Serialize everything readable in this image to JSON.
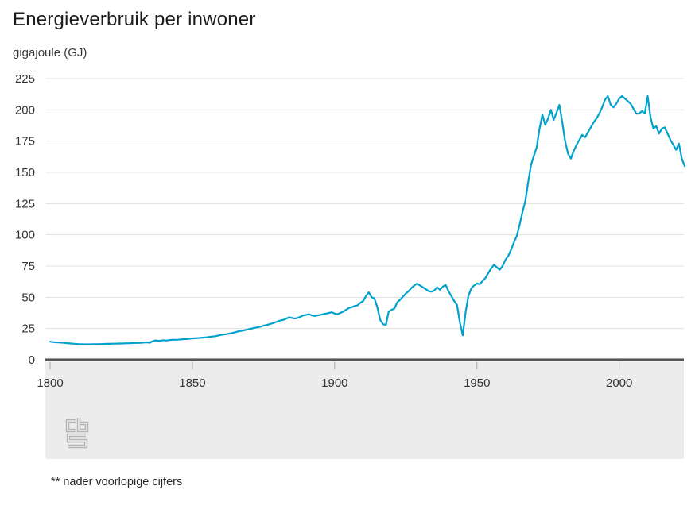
{
  "chart": {
    "title": "Energieverbruik per inwoner",
    "unit": "gigajoule (GJ)",
    "footnote": "** nader voorlopige cijfers",
    "logo": "cbs-logo",
    "colors": {
      "line": "#00a1cd",
      "grid": "#e0e0e0",
      "band": "#ececec",
      "baseline": "#56565a",
      "tick": "#a6a6a6",
      "text": "#333333",
      "logo": "#b5b5b5"
    }
  },
  "chart_data": {
    "type": "line",
    "title": "Energieverbruik per inwoner",
    "xlabel": "",
    "ylabel": "gigajoule (GJ)",
    "xlim": [
      1800,
      2023
    ],
    "ylim": [
      0,
      225
    ],
    "x_ticks": [
      1800,
      1850,
      1900,
      1950,
      2000
    ],
    "y_ticks": [
      0,
      25,
      50,
      75,
      100,
      125,
      150,
      175,
      200,
      225
    ],
    "grid": "horizontal",
    "legend_position": "none",
    "annotations": [
      "** nader voorlopige cijfers"
    ],
    "series": [
      {
        "name": "Energieverbruik per inwoner (GJ)",
        "x_start": 1800,
        "x_step": 1,
        "values": [
          14.5,
          14.2,
          14.0,
          13.9,
          13.7,
          13.5,
          13.3,
          13.1,
          12.9,
          12.7,
          12.6,
          12.5,
          12.4,
          12.4,
          12.4,
          12.5,
          12.5,
          12.6,
          12.6,
          12.7,
          12.8,
          12.8,
          12.9,
          12.9,
          13.0,
          13.0,
          13.1,
          13.2,
          13.3,
          13.4,
          13.5,
          13.5,
          13.6,
          13.8,
          14.0,
          13.6,
          14.8,
          15.5,
          15.2,
          15.4,
          15.7,
          15.4,
          15.8,
          16.0,
          16.0,
          16.1,
          16.3,
          16.5,
          16.6,
          16.9,
          17.1,
          17.3,
          17.4,
          17.6,
          17.8,
          18.0,
          18.3,
          18.6,
          18.9,
          19.3,
          19.8,
          20.2,
          20.5,
          21.0,
          21.4,
          22.0,
          22.7,
          23.1,
          23.5,
          24.0,
          24.6,
          25.1,
          25.6,
          26.0,
          26.5,
          27.3,
          27.8,
          28.4,
          29.1,
          29.9,
          30.7,
          31.5,
          32.0,
          33.0,
          34.0,
          33.5,
          33.0,
          33.5,
          34.5,
          35.5,
          36.0,
          36.5,
          35.5,
          35.0,
          35.5,
          36.0,
          36.5,
          37.0,
          37.5,
          38.0,
          37.0,
          36.5,
          37.5,
          38.5,
          40.0,
          41.5,
          42.0,
          43.0,
          43.5,
          45.5,
          47.0,
          51.0,
          54.0,
          50.0,
          49.0,
          42.0,
          32.0,
          28.5,
          28.0,
          38.5,
          40.0,
          41.0,
          46.0,
          48.0,
          50.5,
          53.0,
          55.0,
          57.5,
          59.5,
          61.0,
          59.5,
          58.0,
          56.5,
          55.0,
          54.5,
          55.5,
          58.0,
          56.0,
          58.5,
          60.0,
          55.0,
          51.0,
          47.0,
          44.0,
          30.0,
          19.5,
          38.0,
          51.0,
          57.0,
          59.5,
          61.0,
          60.5,
          63.0,
          65.5,
          69.5,
          73.0,
          76.0,
          74.0,
          72.0,
          75.0,
          80.0,
          83.0,
          88.0,
          94.0,
          99.0,
          108.0,
          118.0,
          127.0,
          142.0,
          156.0,
          163.0,
          170.0,
          185.0,
          196.0,
          188.0,
          193.0,
          200.0,
          192.0,
          198.0,
          204.0,
          190.0,
          175.0,
          165.0,
          161.0,
          167.0,
          172.0,
          176.0,
          180.0,
          178.0,
          182.0,
          186.0,
          190.0,
          193.0,
          197.0,
          202.0,
          208.0,
          211.0,
          204.0,
          202.0,
          205.0,
          209.0,
          211.0,
          209.0,
          207.0,
          205.0,
          201.0,
          197.0,
          197.0,
          199.0,
          197.0,
          211.0,
          194.0,
          185.0,
          187.0,
          181.0,
          185.0,
          186.0,
          181.0,
          176.0,
          172.0,
          168.0,
          173.0,
          161.0,
          155.0
        ]
      }
    ]
  }
}
